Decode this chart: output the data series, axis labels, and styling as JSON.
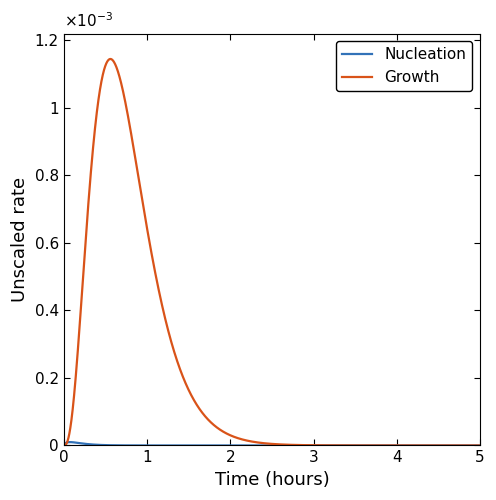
{
  "title": "",
  "xlabel": "Time (hours)",
  "ylabel": "Unscaled rate",
  "xlim": [
    0,
    5
  ],
  "ylim": [
    0,
    0.00122
  ],
  "xticks": [
    0,
    1,
    2,
    3,
    4,
    5
  ],
  "yticks": [
    0,
    0.0002,
    0.0004,
    0.0006,
    0.0008,
    0.001,
    0.0012
  ],
  "ytick_labels": [
    "0",
    "0.2",
    "0.4",
    "0.6",
    "0.8",
    "1",
    "1.2"
  ],
  "nucleation_color": "#3272b8",
  "growth_color": "#d95319",
  "nucleation_label": "Nucleation",
  "growth_label": "Growth",
  "nucleation_peak": 1e-05,
  "nucleation_peak_time": 0.18,
  "growth_peak": 0.001145,
  "growth_peak_time": 0.56,
  "growth_alpha": 2.8,
  "growth_beta": 5.0,
  "nucleation_alpha": 0.6,
  "nucleation_beta": 8.0,
  "line_width": 1.6,
  "legend_fontsize": 11,
  "axis_label_fontsize": 13,
  "tick_fontsize": 11,
  "figsize": [
    4.96,
    5.0
  ],
  "dpi": 100
}
